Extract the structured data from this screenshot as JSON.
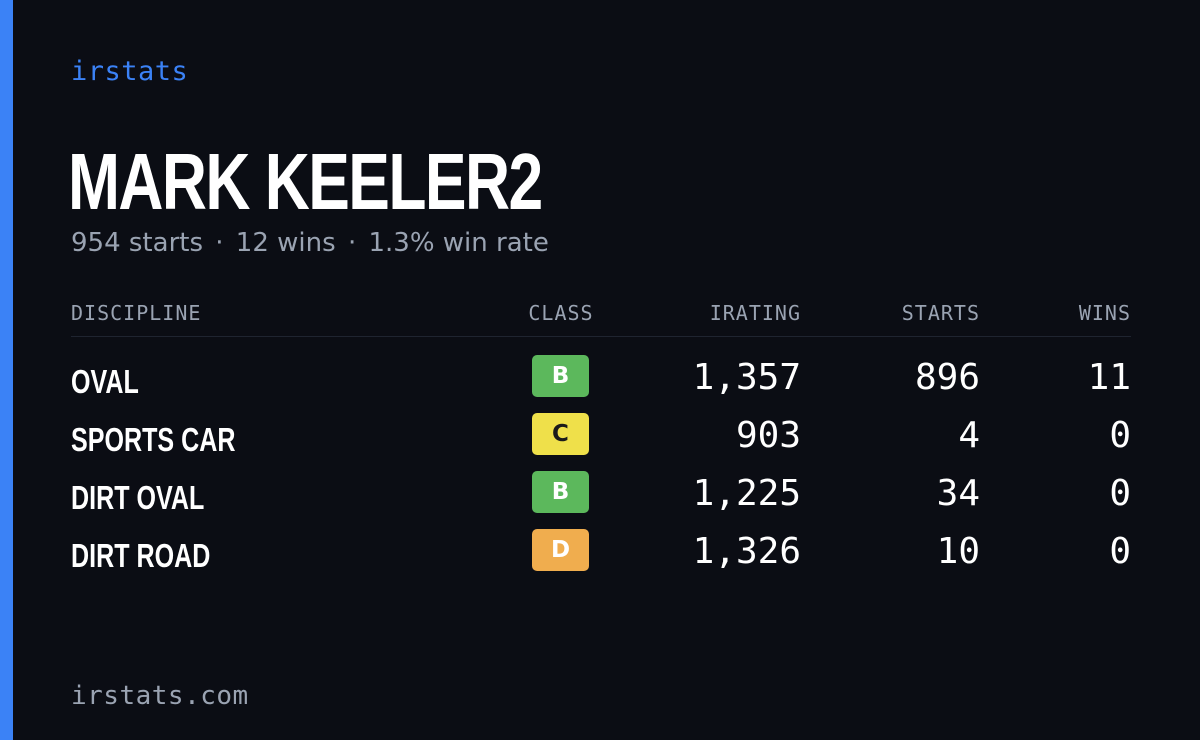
{
  "brand": "irstats",
  "driver": {
    "name": "MARK KEELER2",
    "summary": {
      "starts": "954 starts",
      "wins": "12 wins",
      "win_rate": "1.3% win rate",
      "separator": "·"
    }
  },
  "table": {
    "headers": {
      "discipline": "DISCIPLINE",
      "class": "CLASS",
      "irating": "IRATING",
      "starts": "STARTS",
      "wins": "WINS"
    },
    "rows": [
      {
        "discipline": "OVAL",
        "class": "B",
        "class_color": "#5cb85c",
        "class_text_color": "#ffffff",
        "irating": "1,357",
        "starts": "896",
        "wins": "11"
      },
      {
        "discipline": "SPORTS CAR",
        "class": "C",
        "class_color": "#efe04a",
        "class_text_color": "#1a1a1a",
        "irating": "903",
        "starts": "4",
        "wins": "0"
      },
      {
        "discipline": "DIRT OVAL",
        "class": "B",
        "class_color": "#5cb85c",
        "class_text_color": "#ffffff",
        "irating": "1,225",
        "starts": "34",
        "wins": "0"
      },
      {
        "discipline": "DIRT ROAD",
        "class": "D",
        "class_color": "#f0ad4e",
        "class_text_color": "#ffffff",
        "irating": "1,326",
        "starts": "10",
        "wins": "0"
      }
    ]
  },
  "footer": "irstats.com",
  "colors": {
    "background": "#0b0d14",
    "accent": "#3b82f6",
    "muted_text": "#9aa3b2",
    "primary_text": "#ffffff"
  }
}
